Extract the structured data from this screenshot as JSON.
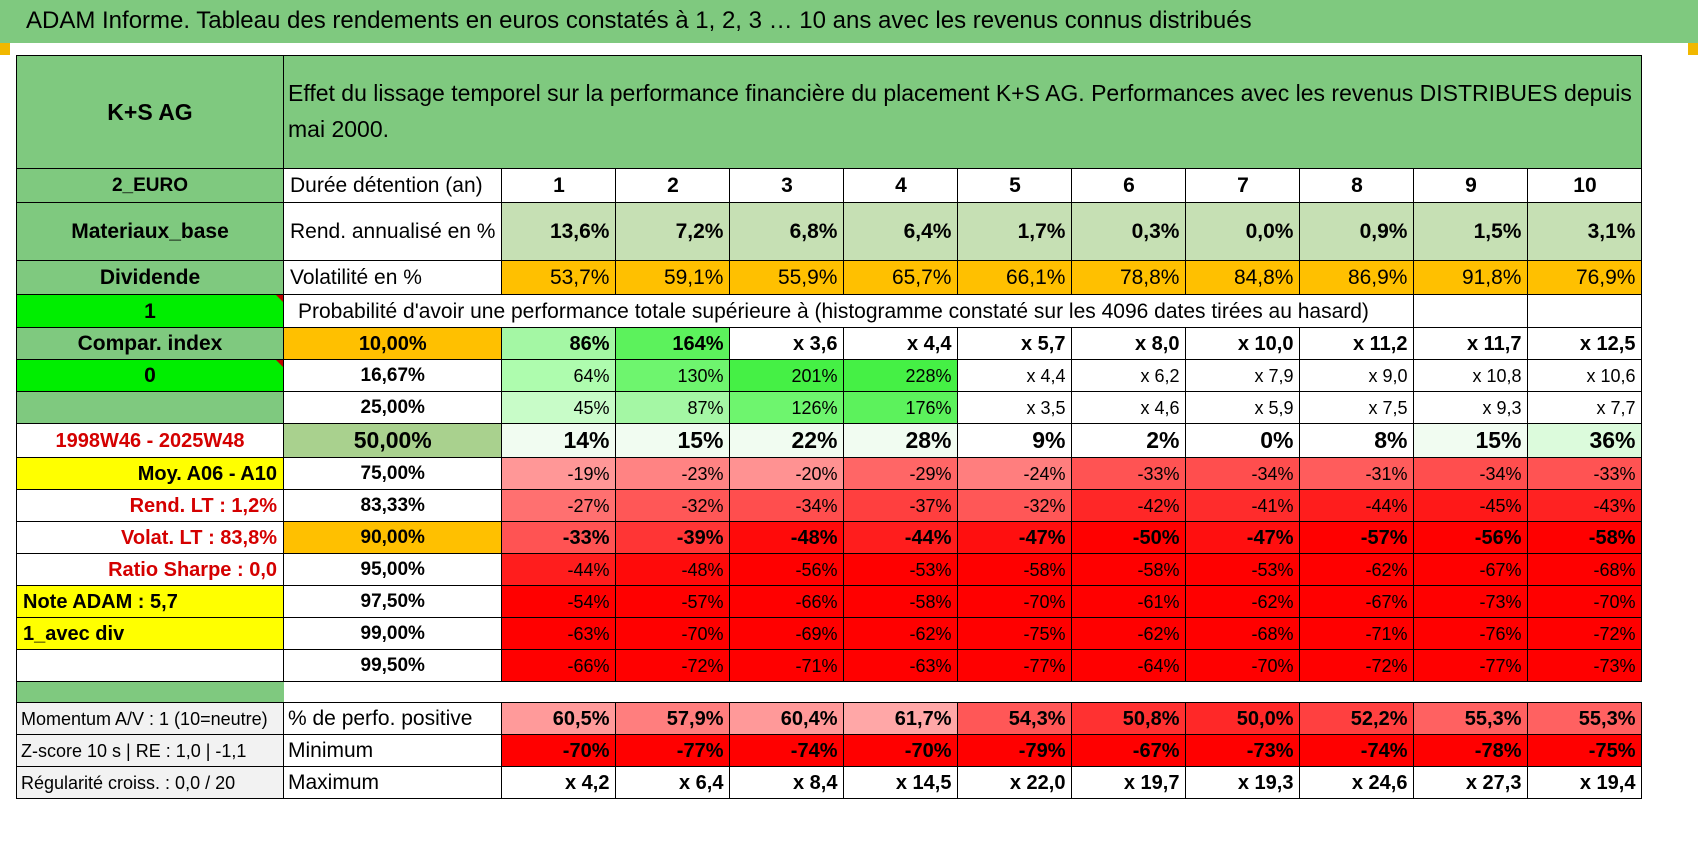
{
  "title": "ADAM Informe. Tableau des rendements en euros constatés à 1, 2, 3 … 10 ans avec les revenus connus distribués",
  "header": {
    "asset": "K+S AG",
    "description_line1": "Effet du lissage temporel sur la performance financière du placement K+S AG. Performances avec les revenus DISTRIBUES depuis",
    "description_line2": "mai 2000."
  },
  "rows_meta": {
    "currency": "2_EURO",
    "sector": "Materiaux_base",
    "distribution": "Dividende",
    "flag1": "1",
    "compar_index": "Compar. index",
    "flag0": "0",
    "period": "1998W46 - 2025W48",
    "moy": "Moy. A06 - A10",
    "rend_lt": "Rend. LT :    1,2%",
    "volat_lt": "Volat. LT :    83,8%",
    "sharpe": "Ratio Sharpe :     0,0",
    "note": "Note ADAM : 5,7",
    "mode": "1_avec div"
  },
  "labels": {
    "duree": "Durée détention (an)",
    "rend": "Rend. annualisé en %",
    "vol": "Volatilité en %",
    "prob": "Probabilité d'avoir une performance totale supérieure à (histogramme constaté sur les 4096 dates tirées au hasard)",
    "pct_pos": "% de perfo. positive",
    "minimum": "Minimum",
    "maximum": "Maximum"
  },
  "years": [
    "1",
    "2",
    "3",
    "4",
    "5",
    "6",
    "7",
    "8",
    "9",
    "10"
  ],
  "rend": [
    "13,6%",
    "7,2%",
    "6,8%",
    "6,4%",
    "1,7%",
    "0,3%",
    "0,0%",
    "0,9%",
    "1,5%",
    "3,1%"
  ],
  "vol": [
    "53,7%",
    "59,1%",
    "55,9%",
    "65,7%",
    "66,1%",
    "78,8%",
    "84,8%",
    "86,9%",
    "91,8%",
    "76,9%"
  ],
  "quantiles": [
    {
      "p": "10,00%",
      "v": [
        "86%",
        "164%",
        "x 3,6",
        "x 4,4",
        "x 5,7",
        "x 8,0",
        "x 10,0",
        "x 11,2",
        "x 11,7",
        "x 12,5"
      ]
    },
    {
      "p": "16,67%",
      "v": [
        "64%",
        "130%",
        "201%",
        "228%",
        "x 4,4",
        "x 6,2",
        "x 7,9",
        "x 9,0",
        "x 10,8",
        "x 10,6"
      ]
    },
    {
      "p": "25,00%",
      "v": [
        "45%",
        "87%",
        "126%",
        "176%",
        "x 3,5",
        "x 4,6",
        "x 5,9",
        "x 7,5",
        "x 9,3",
        "x 7,7"
      ]
    },
    {
      "p": "50,00%",
      "v": [
        "14%",
        "15%",
        "22%",
        "28%",
        "9%",
        "2%",
        "0%",
        "8%",
        "15%",
        "36%"
      ]
    },
    {
      "p": "75,00%",
      "v": [
        "-19%",
        "-23%",
        "-20%",
        "-29%",
        "-24%",
        "-33%",
        "-34%",
        "-31%",
        "-34%",
        "-33%"
      ]
    },
    {
      "p": "83,33%",
      "v": [
        "-27%",
        "-32%",
        "-34%",
        "-37%",
        "-32%",
        "-42%",
        "-41%",
        "-44%",
        "-45%",
        "-43%"
      ]
    },
    {
      "p": "90,00%",
      "v": [
        "-33%",
        "-39%",
        "-48%",
        "-44%",
        "-47%",
        "-50%",
        "-47%",
        "-57%",
        "-56%",
        "-58%"
      ]
    },
    {
      "p": "95,00%",
      "v": [
        "-44%",
        "-48%",
        "-56%",
        "-53%",
        "-58%",
        "-58%",
        "-53%",
        "-62%",
        "-67%",
        "-68%"
      ]
    },
    {
      "p": "97,50%",
      "v": [
        "-54%",
        "-57%",
        "-66%",
        "-58%",
        "-70%",
        "-61%",
        "-62%",
        "-67%",
        "-73%",
        "-70%"
      ]
    },
    {
      "p": "99,00%",
      "v": [
        "-63%",
        "-70%",
        "-69%",
        "-62%",
        "-75%",
        "-62%",
        "-68%",
        "-71%",
        "-76%",
        "-72%"
      ]
    },
    {
      "p": "99,50%",
      "v": [
        "-66%",
        "-72%",
        "-71%",
        "-63%",
        "-77%",
        "-64%",
        "-70%",
        "-72%",
        "-77%",
        "-73%"
      ]
    }
  ],
  "bottom": {
    "momentum": "Momentum A/V : 1 (10=neutre)",
    "zscore": "Z-score 10 s | RE : 1,0 | -1,1",
    "regularite": "Régularité croiss. : 0,0 / 20",
    "pct_pos": [
      "60,5%",
      "57,9%",
      "60,4%",
      "61,7%",
      "54,3%",
      "50,8%",
      "50,0%",
      "52,2%",
      "55,3%",
      "55,3%"
    ],
    "minimum": [
      "-70%",
      "-77%",
      "-74%",
      "-70%",
      "-79%",
      "-67%",
      "-73%",
      "-74%",
      "-78%",
      "-75%"
    ],
    "maximum": [
      "x 4,2",
      "x 6,4",
      "x 8,4",
      "x 14,5",
      "x 22,0",
      "x 19,7",
      "x 19,3",
      "x 24,6",
      "x 27,3",
      "x 19,4"
    ]
  },
  "colors": {
    "header_green": "#7fc97f",
    "bright_green": "#00ee00",
    "orange": "#ffc000",
    "yellow": "#ffff00",
    "light_green": "#c6e0b4",
    "red": "#ff0000"
  }
}
